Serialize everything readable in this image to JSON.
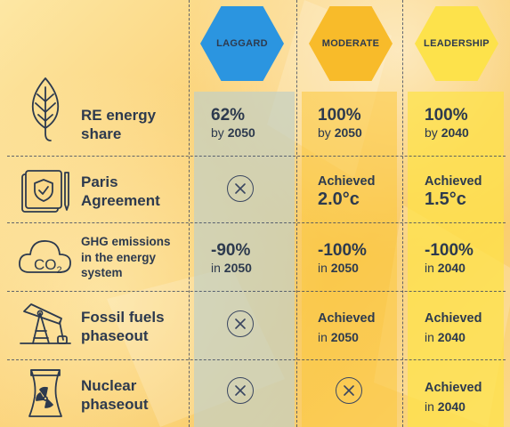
{
  "columns": [
    {
      "key": "laggard",
      "label": "LAGGARD",
      "color": "#2b95e0"
    },
    {
      "key": "moderate",
      "label": "MODERATE",
      "color": "#f8bb2a"
    },
    {
      "key": "leader",
      "label": "LEADERSHIP",
      "color": "#fde24b"
    }
  ],
  "rows": {
    "re": {
      "label_line1": "RE energy",
      "label_line2": "share",
      "icon": "leaf-icon",
      "laggard": {
        "big": "62%",
        "sub_prefix": "by ",
        "sub_year": "2050"
      },
      "moderate": {
        "big": "100%",
        "sub_prefix": "by ",
        "sub_year": "2050"
      },
      "leader": {
        "big": "100%",
        "sub_prefix": "by ",
        "sub_year": "2040"
      }
    },
    "paris": {
      "label_line1": "Paris",
      "label_line2": "Agreement",
      "icon": "document-shield-icon",
      "laggard": {
        "status": "not-achieved-icon"
      },
      "moderate": {
        "title": "Achieved",
        "temp": "2.0°c"
      },
      "leader": {
        "title": "Achieved",
        "temp": "1.5°c"
      }
    },
    "ghg": {
      "label_line1": "GHG emissions",
      "label_line2": "in the energy",
      "label_line3": "system",
      "icon": "co2-cloud-icon",
      "icon_text_co": "CO",
      "icon_text_2": "2",
      "laggard": {
        "big": "-90%",
        "sub_prefix": "in ",
        "sub_year": "2050"
      },
      "moderate": {
        "big": "-100%",
        "sub_prefix": "in ",
        "sub_year": "2050"
      },
      "leader": {
        "big": "-100%",
        "sub_prefix": "in ",
        "sub_year": "2040"
      }
    },
    "fossil": {
      "label_line1": "Fossil fuels",
      "label_line2": "phaseout",
      "icon": "oil-pump-icon",
      "laggard": {
        "status": "not-achieved-icon"
      },
      "moderate": {
        "title": "Achieved",
        "sub_prefix": "in ",
        "sub_year": "2050"
      },
      "leader": {
        "title": "Achieved",
        "sub_prefix": "in ",
        "sub_year": "2040"
      }
    },
    "nuclear": {
      "label_line1": "Nuclear",
      "label_line2": "phaseout",
      "icon": "nuclear-plant-icon",
      "laggard": {
        "status": "not-achieved-icon"
      },
      "moderate": {
        "status": "not-achieved-icon"
      },
      "leader": {
        "title": "Achieved",
        "sub_prefix": "in ",
        "sub_year": "2040"
      }
    }
  }
}
